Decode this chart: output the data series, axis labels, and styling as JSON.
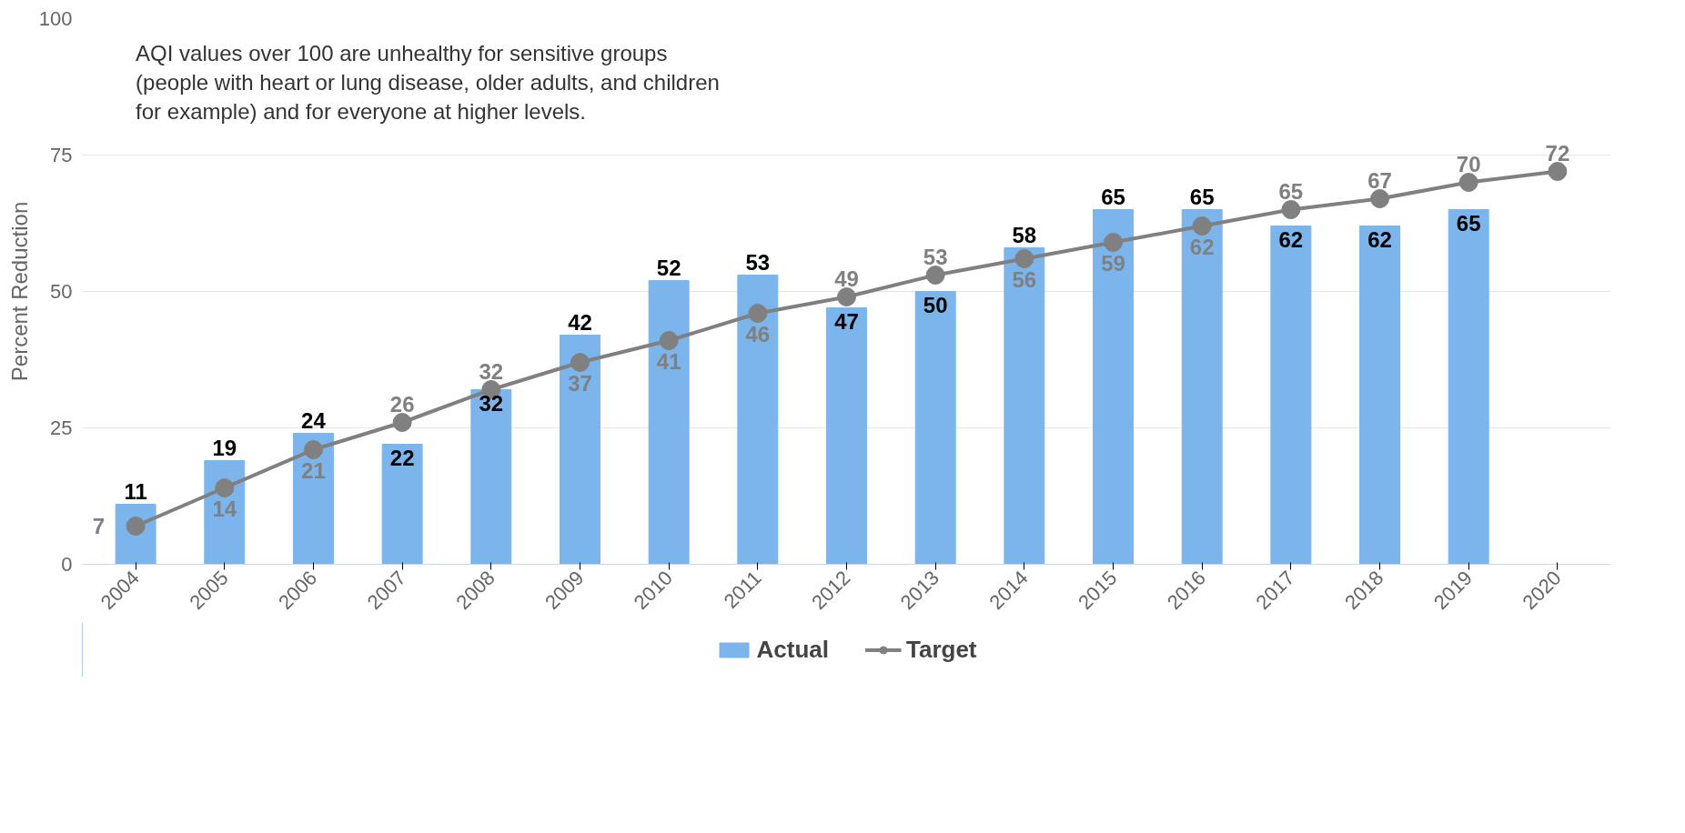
{
  "chart_data": {
    "type": "bar",
    "ylabel": "Percent Reduction",
    "categories": [
      "2004",
      "2005",
      "2006",
      "2007",
      "2008",
      "2009",
      "2010",
      "2011",
      "2012",
      "2013",
      "2014",
      "2015",
      "2016",
      "2017",
      "2018",
      "2019",
      "2020"
    ],
    "series": [
      {
        "name": "Actual",
        "color": "#7cb5ec",
        "values": [
          11,
          19,
          24,
          22,
          32,
          42,
          52,
          53,
          47,
          50,
          58,
          65,
          65,
          62,
          62,
          65,
          null
        ]
      },
      {
        "name": "Target",
        "type": "line",
        "color": "#808080",
        "marker": "circle",
        "values": [
          7,
          14,
          21,
          26,
          32,
          37,
          41,
          46,
          49,
          53,
          56,
          59,
          62,
          65,
          67,
          70,
          72
        ]
      }
    ],
    "ylim": [
      0,
      100
    ],
    "yticks": [
      0,
      25,
      50,
      75,
      100
    ],
    "grid": "y",
    "legend": "bottom",
    "data_labels": true,
    "annotations": [
      "AQI values over 100 are unhealthy for sensitive groups\n(people with heart or lung disease, older adults, and children\nfor example) and for everyone at higher levels."
    ]
  }
}
